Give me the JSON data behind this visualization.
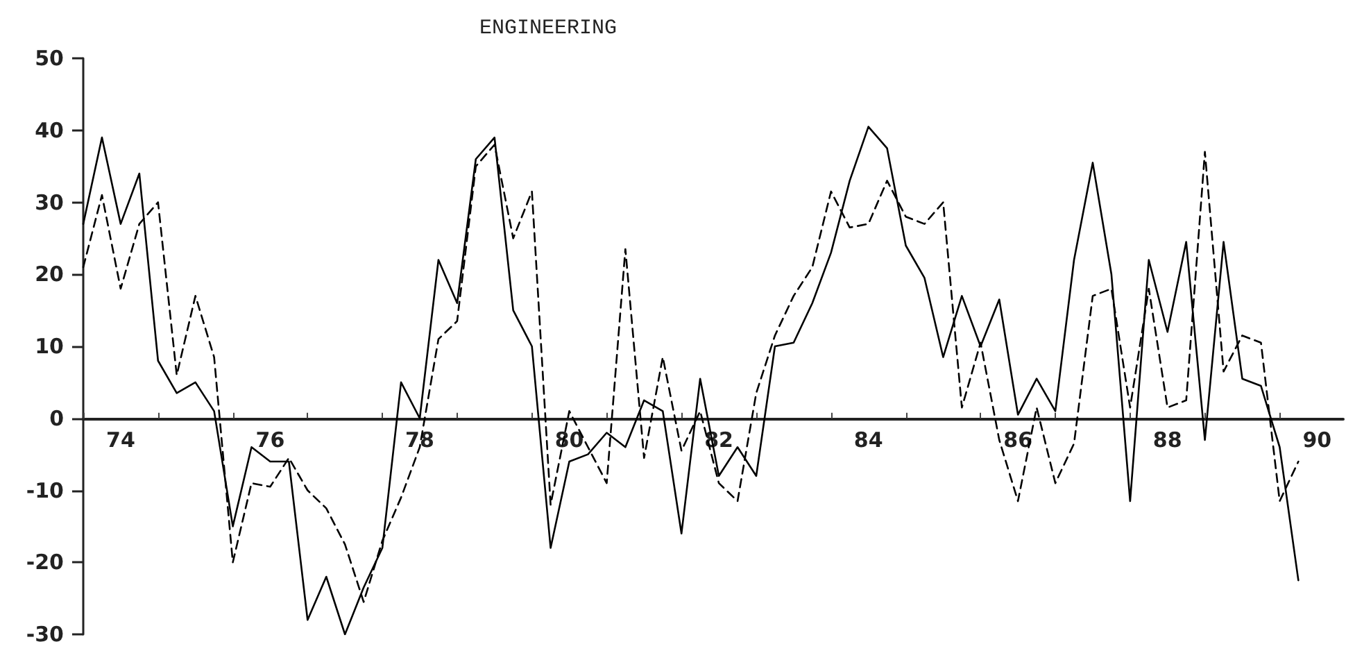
{
  "chart_data": {
    "type": "line",
    "title": "ENGINEERING",
    "x": [
      74,
      74.25,
      74.5,
      74.75,
      75,
      75.25,
      75.5,
      75.75,
      76,
      76.25,
      76.5,
      76.75,
      77,
      77.25,
      77.5,
      77.75,
      78,
      78.25,
      78.5,
      78.75,
      79,
      79.25,
      79.5,
      79.75,
      80,
      80.25,
      80.5,
      80.75,
      81,
      81.25,
      81.5,
      81.75,
      82,
      82.25,
      82.5,
      82.75,
      83,
      83.25,
      83.5,
      83.75,
      84,
      84.25,
      84.5,
      84.75,
      85,
      85.25,
      85.5,
      85.75,
      86,
      86.25,
      86.5,
      86.75,
      87,
      87.25,
      87.5,
      87.75,
      88,
      88.25,
      88.5,
      88.75,
      89,
      89.25,
      89.5,
      89.75,
      90,
      90.25
    ],
    "series": [
      {
        "color": "#000000",
        "line_style": "solid",
        "values": [
          27,
          39,
          27,
          34,
          8,
          3.5,
          5,
          1,
          -15,
          -4,
          -6,
          -6,
          -28,
          -22,
          -30,
          -23.5,
          -18,
          5,
          0,
          22,
          16,
          36,
          39,
          15,
          10,
          -18,
          -6,
          -5,
          -2,
          -4,
          2.5,
          1,
          -16,
          5.5,
          -8,
          -4,
          -8,
          10,
          10.5,
          16,
          23,
          33,
          40.5,
          37.5,
          24,
          19.5,
          8.5,
          17,
          10,
          16.5,
          0.5,
          5.5,
          1,
          22,
          35.5,
          20,
          -11.5,
          22,
          12,
          24.5,
          -3,
          24.5,
          5.5,
          4.5,
          -4,
          -22.5
        ]
      },
      {
        "color": "#000000",
        "line_style": "dashed",
        "values": [
          21,
          31,
          18,
          27,
          30,
          6,
          17,
          8.5,
          -20,
          -9,
          -9.5,
          -5.5,
          -10,
          -12.5,
          -17.5,
          -25.5,
          -17,
          -11,
          -4,
          11,
          13.5,
          35,
          38,
          25,
          31.5,
          -12,
          1,
          -4,
          -9,
          23.5,
          -5.5,
          8.5,
          -4.5,
          1,
          -9,
          -11.5,
          3.5,
          11.5,
          17,
          21,
          31.5,
          26.5,
          27,
          33,
          28,
          27,
          30,
          1.5,
          10.5,
          -3,
          -11.5,
          1.5,
          -9,
          -3.5,
          17,
          18,
          1.5,
          18,
          1.5,
          2.5,
          37,
          6.5,
          11.5,
          10.5,
          -11.5,
          -6
        ]
      }
    ],
    "xlim": [
      74,
      90.85
    ],
    "xticks": [
      {
        "value": 74,
        "label": null
      },
      {
        "value": 74.5,
        "label": "74"
      },
      {
        "value": 75,
        "label": null
      },
      {
        "value": 76,
        "label": null
      },
      {
        "value": 76.5,
        "label": "76"
      },
      {
        "value": 77,
        "label": null
      },
      {
        "value": 78,
        "label": null
      },
      {
        "value": 78.5,
        "label": "78"
      },
      {
        "value": 79,
        "label": null
      },
      {
        "value": 80,
        "label": null
      },
      {
        "value": 80.5,
        "label": "80"
      },
      {
        "value": 81,
        "label": null
      },
      {
        "value": 82,
        "label": null
      },
      {
        "value": 82.5,
        "label": "82"
      },
      {
        "value": 83,
        "label": null
      },
      {
        "value": 84,
        "label": null
      },
      {
        "value": 84.5,
        "label": "84"
      },
      {
        "value": 85,
        "label": null
      },
      {
        "value": 86,
        "label": null
      },
      {
        "value": 86.5,
        "label": "86"
      },
      {
        "value": 87,
        "label": null
      },
      {
        "value": 88,
        "label": null
      },
      {
        "value": 88.5,
        "label": "88"
      },
      {
        "value": 89,
        "label": null
      },
      {
        "value": 90,
        "label": null
      },
      {
        "value": 90.5,
        "label": "90"
      }
    ],
    "ylim": [
      -30,
      50
    ],
    "yticks": [
      -30,
      -20,
      -10,
      0,
      10,
      20,
      30,
      40,
      50
    ],
    "grid": false,
    "marker": "none"
  }
}
